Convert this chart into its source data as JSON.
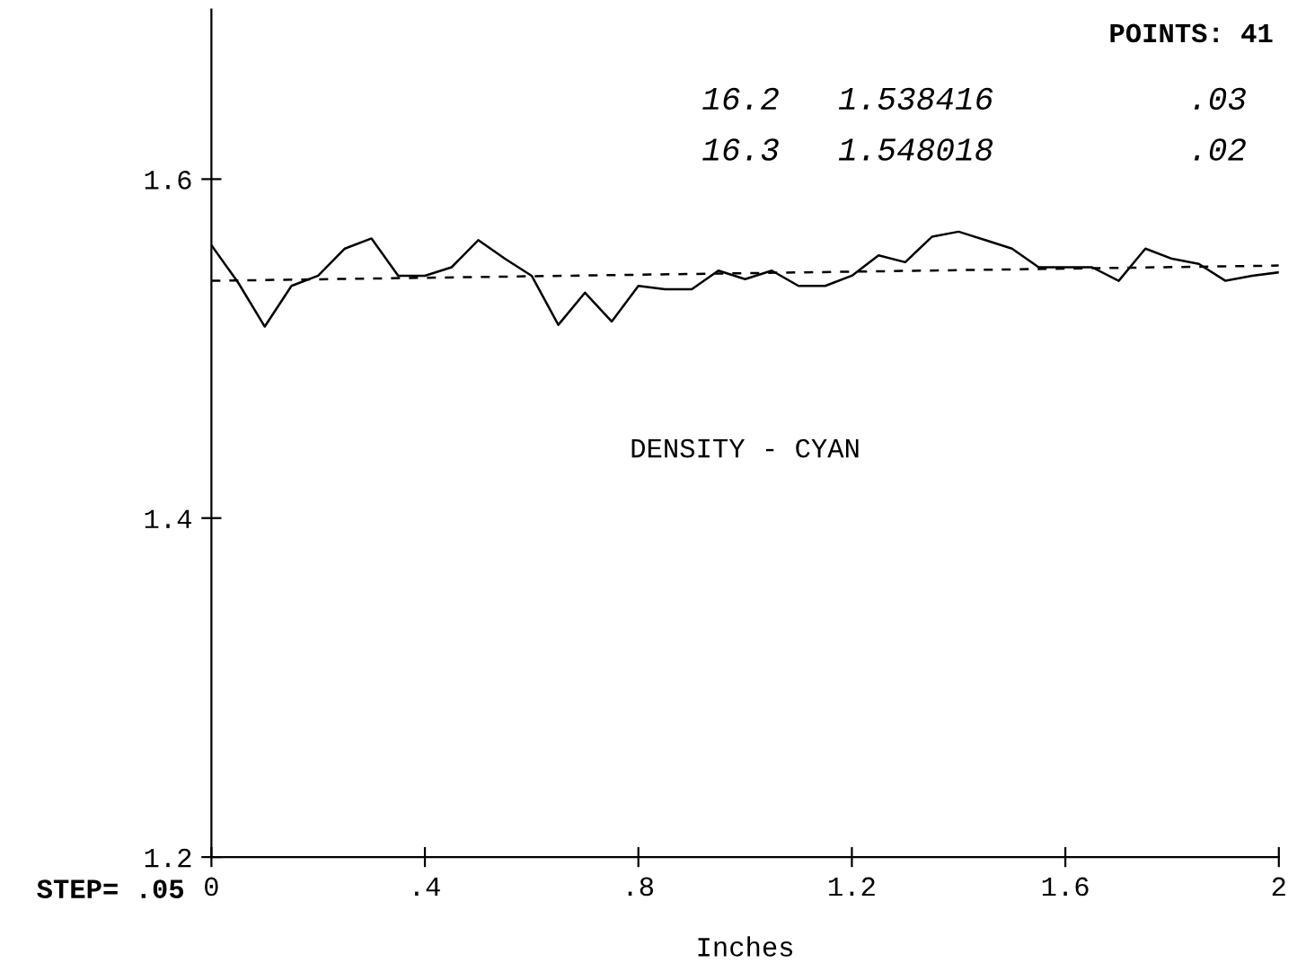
{
  "chart_data": {
    "type": "line",
    "xlabel": "Inches",
    "annotations": [
      "POINTS: 41",
      "16.2   1.538416          .03",
      "16.3   1.548018          .02",
      "DENSITY - CYAN",
      "STEP= .05"
    ],
    "series": [
      {
        "color": "#000000",
        "line_style": "solid",
        "x": [
          0,
          0.05,
          0.1,
          0.15,
          0.2,
          0.25,
          0.3,
          0.35,
          0.4,
          0.45,
          0.5,
          0.55,
          0.6,
          0.65,
          0.7,
          0.75,
          0.8,
          0.85,
          0.9,
          0.95,
          1.0,
          1.05,
          1.1,
          1.15,
          1.2,
          1.25,
          1.3,
          1.35,
          1.4,
          1.45,
          1.5,
          1.55,
          1.6,
          1.65,
          1.7,
          1.75,
          1.8,
          1.85,
          1.9,
          1.95,
          2.0
        ],
        "values": [
          1.561,
          1.539,
          1.513,
          1.537,
          1.543,
          1.559,
          1.565,
          1.543,
          1.543,
          1.548,
          1.564,
          1.553,
          1.543,
          1.514,
          1.533,
          1.516,
          1.537,
          1.535,
          1.535,
          1.546,
          1.541,
          1.546,
          1.537,
          1.537,
          1.543,
          1.555,
          1.551,
          1.566,
          1.569,
          1.564,
          1.559,
          1.548,
          1.548,
          1.548,
          1.54,
          1.559,
          1.553,
          1.55,
          1.54,
          1.543,
          1.545
        ]
      },
      {
        "color": "#000000",
        "line_style": "dashed",
        "x": [
          0,
          2.0
        ],
        "values": [
          1.54,
          1.549
        ]
      }
    ],
    "xlim": [
      0,
      2
    ],
    "ylim": [
      1.2,
      1.7
    ],
    "xticks": [
      {
        "value": 0,
        "label": "0"
      },
      {
        "value": 0.4,
        "label": ".4"
      },
      {
        "value": 0.8,
        "label": ".8"
      },
      {
        "value": 1.2,
        "label": "1.2"
      },
      {
        "value": 1.6,
        "label": "1.6"
      },
      {
        "value": 2,
        "label": "2"
      }
    ],
    "yticks": [
      1.2,
      1.4,
      1.6
    ],
    "grid": false,
    "legend": false,
    "marker": "none"
  }
}
